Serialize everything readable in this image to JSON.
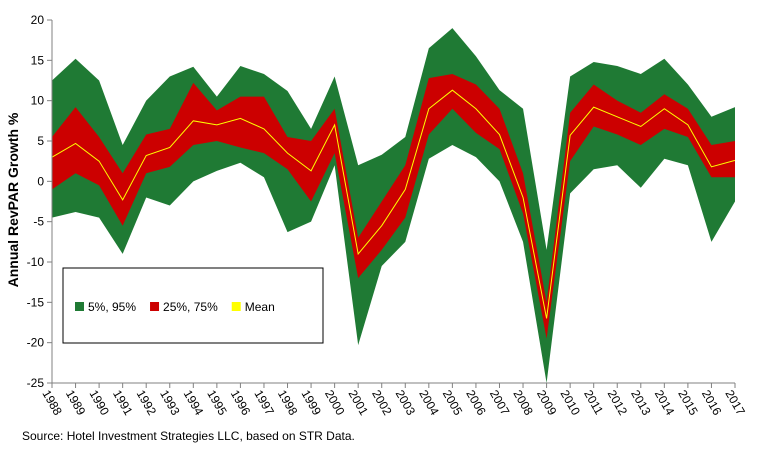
{
  "chart_data": {
    "type": "fan",
    "y_label": "Annual RevPAR Growth %",
    "source": "Source: Hotel Investment Strategies LLC, based on STR Data.",
    "categories": [
      "1988",
      "1989",
      "1990",
      "1991",
      "1992",
      "1993",
      "1994",
      "1995",
      "1996",
      "1997",
      "1998",
      "1999",
      "2000",
      "2001",
      "2002",
      "2003",
      "2004",
      "2005",
      "2006",
      "2007",
      "2008",
      "2009",
      "2010",
      "2011",
      "2012",
      "2013",
      "2014",
      "2015",
      "2016",
      "2017"
    ],
    "series": [
      {
        "name": "5%, 95%",
        "color": "#1f7a34",
        "low": [
          -4.5,
          -3.8,
          -4.5,
          -9,
          -2,
          -3,
          0,
          1.3,
          2.3,
          0.5,
          -6.3,
          -5,
          2,
          -20.3,
          -10.5,
          -7.5,
          2.8,
          4.5,
          3,
          0,
          -7.5,
          -25,
          -1.5,
          1.5,
          2,
          -0.8,
          2.8,
          2,
          -7.5,
          -2.5
        ],
        "high": [
          12.5,
          15.2,
          12.5,
          4.5,
          10,
          13,
          14.2,
          10.5,
          14.3,
          13.3,
          11.2,
          6.5,
          13,
          2,
          3.3,
          5.5,
          16.5,
          19,
          15.5,
          11.3,
          9,
          -8.5,
          13,
          14.8,
          14.3,
          13.3,
          15.2,
          12,
          8,
          9.2
        ]
      },
      {
        "name": "25%, 75%",
        "color": "#cc0000",
        "low": [
          -1,
          1,
          -0.5,
          -5.5,
          1,
          1.8,
          4.5,
          5,
          4.2,
          3.5,
          1.5,
          -2.5,
          3.5,
          -12,
          -8.5,
          -4.5,
          5.8,
          9,
          6,
          4,
          -4,
          -19.5,
          2.5,
          6.8,
          5.8,
          4.5,
          6.5,
          5.5,
          0.5,
          0.5
        ],
        "high": [
          5.5,
          9.2,
          5.5,
          1,
          5.8,
          6.5,
          12.2,
          8.8,
          10.5,
          10.5,
          5.5,
          5,
          9,
          -7,
          -2.5,
          2,
          12.8,
          13.3,
          12,
          9,
          1,
          -15,
          8.5,
          12,
          10,
          8.5,
          10.8,
          9,
          4.5,
          5
        ]
      },
      {
        "name": "Mean",
        "color": "#ffff00",
        "values": [
          3,
          4.7,
          2.5,
          -2.3,
          3.2,
          4.2,
          7.5,
          7,
          7.8,
          6.5,
          3.5,
          1.3,
          7,
          -9,
          -5.5,
          -1,
          9,
          11.3,
          9,
          5.8,
          -2,
          -17,
          5.7,
          9.2,
          8,
          6.8,
          9,
          7,
          1.8,
          2.6
        ]
      }
    ],
    "ylim": [
      -25,
      20
    ],
    "yticks": [
      -25,
      -20,
      -15,
      -10,
      -5,
      0,
      5,
      10,
      15,
      20
    ],
    "legend_position": "lower left"
  }
}
